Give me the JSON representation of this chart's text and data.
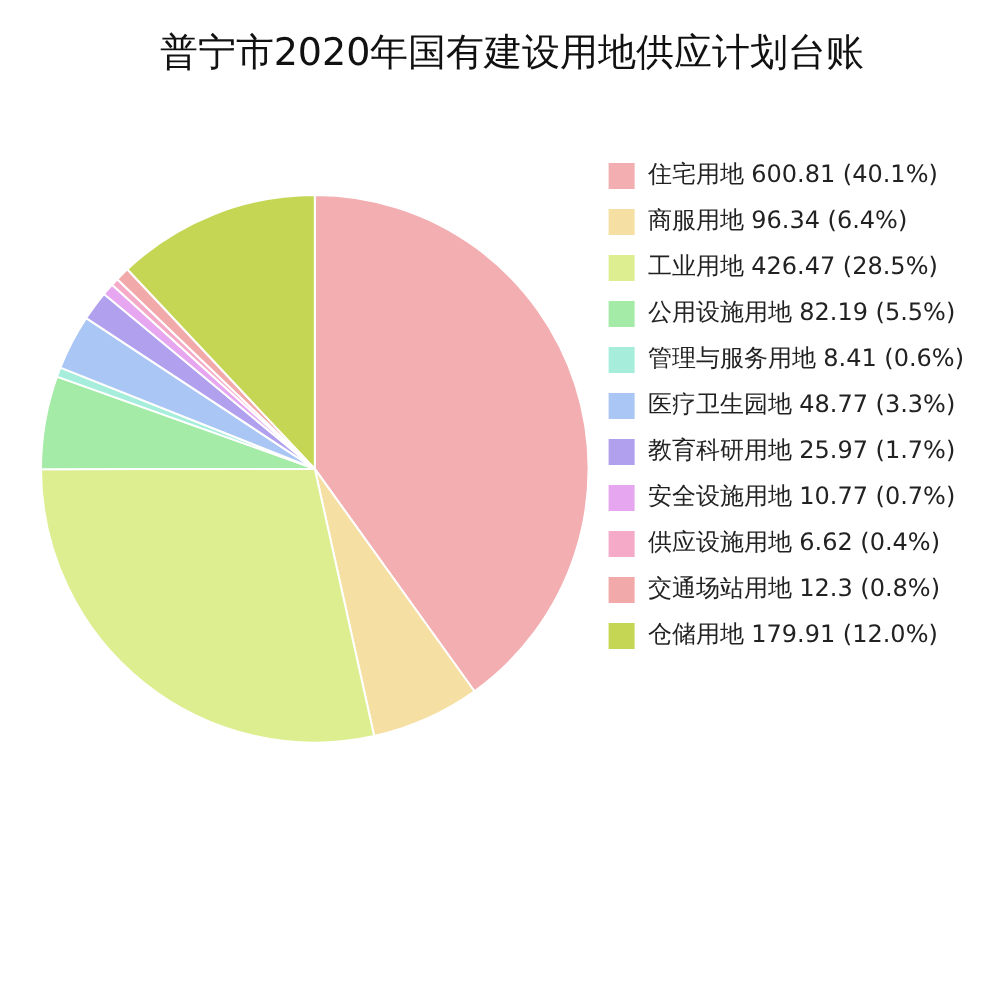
{
  "chart_data": {
    "type": "pie",
    "title": "普宁市2020年国有建设用地供应计划台账",
    "categories": [
      "住宅用地 600.81 (40.1%)",
      "商服用地 96.34 (6.4%)",
      "工业用地 426.47 (28.5%)",
      "公用设施用地 82.19 (5.5%)",
      "管理与服务用地 8.41 (0.6%)",
      "医疗卫生园地 48.77 (3.3%)",
      "教育科研用地 25.97 (1.7%)",
      "安全设施用地 10.77 (0.7%)",
      "供应设施用地 6.62 (0.4%)",
      "交通场站用地 12.3 (0.8%)",
      "仓储用地 179.91 (12.0%)"
    ],
    "values": [
      600.81,
      96.34,
      426.47,
      82.19,
      8.41,
      48.77,
      25.97,
      10.77,
      6.62,
      12.3,
      179.91
    ],
    "colors": [
      "#f2aeb0",
      "#f5dfa3",
      "#dcee90",
      "#a3eba6",
      "#a6eedb",
      "#aac6f5",
      "#b0a0ee",
      "#e6a6f0",
      "#f5aac8",
      "#f2a9a9",
      "#c5d654"
    ],
    "legend": "right"
  }
}
